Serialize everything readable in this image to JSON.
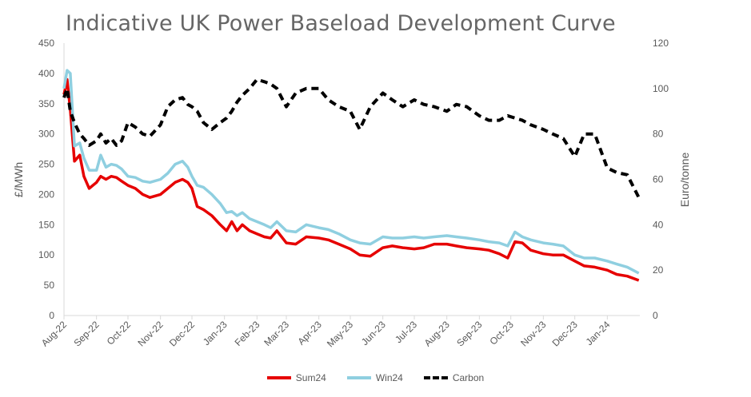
{
  "chart_data": {
    "type": "line",
    "title": "Indicative UK Power Baseload Development Curve",
    "ylabel": "£/MWh",
    "y2label": "Euro/tonne",
    "ylim": [
      0,
      450
    ],
    "y2lim": [
      0,
      120
    ],
    "yticks": [
      "0",
      "50",
      "100",
      "150",
      "200",
      "250",
      "300",
      "350",
      "400",
      "450"
    ],
    "y2ticks": [
      "0",
      "20",
      "40",
      "60",
      "80",
      "100",
      "120"
    ],
    "xticks": [
      "Aug-22",
      "Sep-22",
      "Oct-22",
      "Nov-22",
      "Dec-22",
      "Jan-23",
      "Feb-23",
      "Mar-23",
      "Apr-23",
      "May-23",
      "Jun-23",
      "Jul-23",
      "Aug-23",
      "Sep-23",
      "Oct-23",
      "Nov-23",
      "Dec-23",
      "Jan-24"
    ],
    "grid": false,
    "legend_position": "bottom",
    "series": [
      {
        "name": "Sum24",
        "axis": "left",
        "color": "#e60000",
        "style": "solid",
        "x": [
          "2022-08-01",
          "2022-08-04",
          "2022-08-07",
          "2022-08-11",
          "2022-08-16",
          "2022-08-20",
          "2022-08-25",
          "2022-09-01",
          "2022-09-05",
          "2022-09-10",
          "2022-09-15",
          "2022-09-20",
          "2022-09-25",
          "2022-10-01",
          "2022-10-08",
          "2022-10-15",
          "2022-10-22",
          "2022-11-01",
          "2022-11-08",
          "2022-11-15",
          "2022-11-22",
          "2022-11-27",
          "2022-12-01",
          "2022-12-06",
          "2022-12-12",
          "2022-12-20",
          "2022-12-28",
          "2023-01-03",
          "2023-01-08",
          "2023-01-13",
          "2023-01-18",
          "2023-01-25",
          "2023-02-01",
          "2023-02-08",
          "2023-02-14",
          "2023-02-20",
          "2023-03-01",
          "2023-03-10",
          "2023-03-20",
          "2023-04-01",
          "2023-04-10",
          "2023-04-20",
          "2023-05-01",
          "2023-05-10",
          "2023-05-20",
          "2023-06-01",
          "2023-06-10",
          "2023-06-20",
          "2023-07-01",
          "2023-07-10",
          "2023-07-20",
          "2023-08-01",
          "2023-08-10",
          "2023-08-20",
          "2023-09-01",
          "2023-09-10",
          "2023-09-20",
          "2023-09-28",
          "2023-10-05",
          "2023-10-12",
          "2023-10-20",
          "2023-11-01",
          "2023-11-10",
          "2023-11-20",
          "2023-12-01",
          "2023-12-10",
          "2023-12-20",
          "2024-01-01",
          "2024-01-10",
          "2024-01-20",
          "2024-01-31"
        ],
        "values": [
          365,
          390,
          340,
          255,
          265,
          230,
          210,
          220,
          230,
          225,
          230,
          228,
          222,
          215,
          210,
          200,
          195,
          200,
          210,
          220,
          225,
          220,
          210,
          180,
          175,
          165,
          150,
          140,
          155,
          140,
          150,
          140,
          135,
          130,
          128,
          140,
          120,
          118,
          130,
          128,
          125,
          118,
          110,
          100,
          98,
          112,
          115,
          112,
          110,
          112,
          118,
          118,
          115,
          112,
          110,
          108,
          102,
          95,
          122,
          120,
          108,
          102,
          100,
          100,
          90,
          82,
          80,
          75,
          68,
          65,
          58
        ]
      },
      {
        "name": "Win24",
        "axis": "left",
        "color": "#8fcfe0",
        "style": "solid",
        "x": [
          "2022-08-01",
          "2022-08-04",
          "2022-08-07",
          "2022-08-11",
          "2022-08-16",
          "2022-08-20",
          "2022-08-25",
          "2022-09-01",
          "2022-09-05",
          "2022-09-10",
          "2022-09-15",
          "2022-09-20",
          "2022-09-25",
          "2022-10-01",
          "2022-10-08",
          "2022-10-15",
          "2022-10-22",
          "2022-11-01",
          "2022-11-08",
          "2022-11-15",
          "2022-11-22",
          "2022-11-27",
          "2022-12-01",
          "2022-12-06",
          "2022-12-12",
          "2022-12-20",
          "2022-12-28",
          "2023-01-03",
          "2023-01-08",
          "2023-01-13",
          "2023-01-18",
          "2023-01-25",
          "2023-02-01",
          "2023-02-08",
          "2023-02-14",
          "2023-02-20",
          "2023-03-01",
          "2023-03-10",
          "2023-03-20",
          "2023-04-01",
          "2023-04-10",
          "2023-04-20",
          "2023-05-01",
          "2023-05-10",
          "2023-05-20",
          "2023-06-01",
          "2023-06-10",
          "2023-06-20",
          "2023-07-01",
          "2023-07-10",
          "2023-07-20",
          "2023-08-01",
          "2023-08-10",
          "2023-08-20",
          "2023-09-01",
          "2023-09-10",
          "2023-09-20",
          "2023-09-28",
          "2023-10-05",
          "2023-10-12",
          "2023-10-20",
          "2023-11-01",
          "2023-11-10",
          "2023-11-20",
          "2023-12-01",
          "2023-12-10",
          "2023-12-20",
          "2024-01-01",
          "2024-01-10",
          "2024-01-20",
          "2024-01-31"
        ],
        "values": [
          375,
          405,
          400,
          280,
          285,
          260,
          240,
          240,
          265,
          245,
          250,
          248,
          242,
          230,
          228,
          222,
          220,
          225,
          235,
          250,
          255,
          245,
          230,
          215,
          212,
          200,
          185,
          170,
          172,
          165,
          170,
          160,
          155,
          150,
          145,
          155,
          140,
          138,
          150,
          145,
          142,
          135,
          125,
          120,
          118,
          130,
          128,
          128,
          130,
          128,
          130,
          132,
          130,
          128,
          125,
          122,
          120,
          115,
          138,
          130,
          125,
          120,
          118,
          115,
          100,
          95,
          95,
          90,
          85,
          80,
          70
        ]
      },
      {
        "name": "Carbon",
        "axis": "right",
        "color": "#000000",
        "style": "dashed",
        "x": [
          "2022-08-01",
          "2022-08-04",
          "2022-08-07",
          "2022-08-11",
          "2022-08-16",
          "2022-08-20",
          "2022-08-25",
          "2022-09-01",
          "2022-09-05",
          "2022-09-10",
          "2022-09-15",
          "2022-09-20",
          "2022-09-25",
          "2022-10-01",
          "2022-10-08",
          "2022-10-15",
          "2022-10-22",
          "2022-11-01",
          "2022-11-08",
          "2022-11-15",
          "2022-11-22",
          "2022-11-27",
          "2022-12-01",
          "2022-12-06",
          "2022-12-12",
          "2022-12-20",
          "2022-12-28",
          "2023-01-03",
          "2023-01-08",
          "2023-01-13",
          "2023-01-18",
          "2023-01-25",
          "2023-02-01",
          "2023-02-08",
          "2023-02-14",
          "2023-02-20",
          "2023-03-01",
          "2023-03-10",
          "2023-03-20",
          "2023-04-01",
          "2023-04-10",
          "2023-04-20",
          "2023-05-01",
          "2023-05-10",
          "2023-05-20",
          "2023-06-01",
          "2023-06-10",
          "2023-06-20",
          "2023-07-01",
          "2023-07-10",
          "2023-07-20",
          "2023-08-01",
          "2023-08-10",
          "2023-08-20",
          "2023-09-01",
          "2023-09-10",
          "2023-09-20",
          "2023-09-28",
          "2023-10-05",
          "2023-10-12",
          "2023-10-20",
          "2023-11-01",
          "2023-11-10",
          "2023-11-20",
          "2023-12-01",
          "2023-12-10",
          "2023-12-20",
          "2024-01-01",
          "2024-01-10",
          "2024-01-20",
          "2024-01-31"
        ],
        "values": [
          96,
          100,
          90,
          85,
          80,
          78,
          75,
          77,
          80,
          76,
          78,
          75,
          77,
          85,
          83,
          80,
          79,
          84,
          92,
          95,
          96,
          93,
          92,
          90,
          85,
          82,
          85,
          87,
          90,
          94,
          97,
          100,
          104,
          103,
          102,
          100,
          92,
          98,
          100,
          100,
          95,
          92,
          90,
          82,
          92,
          98,
          95,
          92,
          95,
          93,
          92,
          90,
          93,
          92,
          88,
          86,
          86,
          88,
          87,
          86,
          84,
          82,
          80,
          78,
          70,
          80,
          80,
          65,
          63,
          62,
          52
        ]
      }
    ]
  }
}
